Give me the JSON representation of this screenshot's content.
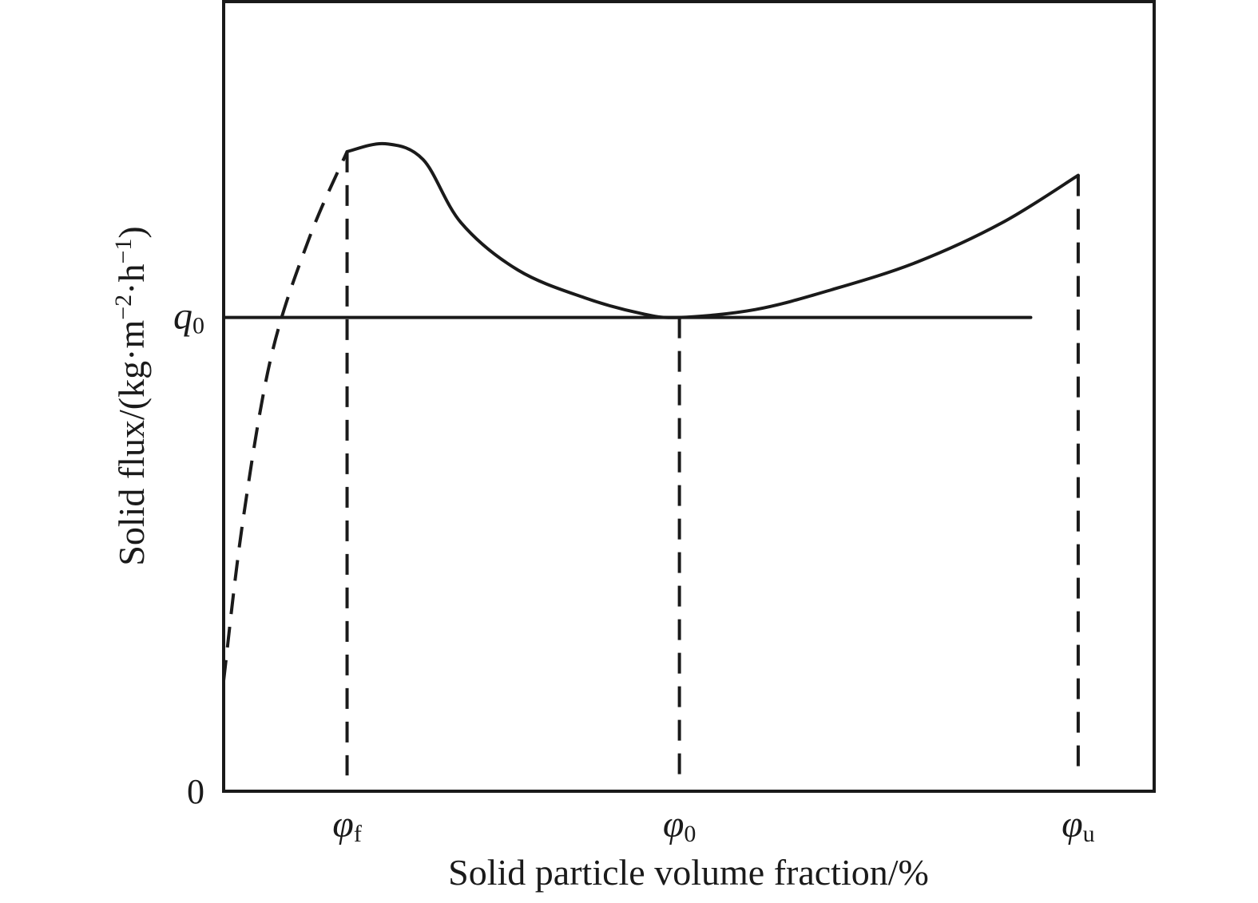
{
  "chart_data": {
    "type": "line",
    "title": "",
    "xlabel": "Solid particle volume fraction/%",
    "ylabel_main": "Solid flux/(kg·m",
    "ylabel_exp1": "−2",
    "ylabel_mid": "·h",
    "ylabel_exp2": "−1",
    "ylabel_end": ")",
    "x_ticks": [
      {
        "symbol": "φ",
        "sub": "f",
        "x": 0.15
      },
      {
        "symbol": "φ",
        "sub": "0",
        "x": 0.5
      },
      {
        "symbol": "φ",
        "sub": "u",
        "x": 0.92
      }
    ],
    "y_ticks": {
      "zero": "0",
      "q0_symbol": "q",
      "q0_sub": "0",
      "q0_value": 0.6
    },
    "xlim": [
      0.02,
      1.0
    ],
    "ylim": [
      0,
      1.0
    ],
    "grid": false,
    "series": [
      {
        "style": "dashed",
        "points": [
          [
            0.02,
            0.14
          ],
          [
            0.04,
            0.34
          ],
          [
            0.07,
            0.55
          ],
          [
            0.11,
            0.7
          ],
          [
            0.15,
            0.81
          ]
        ]
      },
      {
        "style": "solid",
        "points": [
          [
            0.15,
            0.81
          ],
          [
            0.19,
            0.82
          ],
          [
            0.23,
            0.8
          ],
          [
            0.27,
            0.72
          ],
          [
            0.33,
            0.66
          ],
          [
            0.4,
            0.625
          ],
          [
            0.46,
            0.605
          ],
          [
            0.5,
            0.6
          ],
          [
            0.58,
            0.61
          ],
          [
            0.66,
            0.635
          ],
          [
            0.75,
            0.67
          ],
          [
            0.84,
            0.72
          ],
          [
            0.92,
            0.78
          ]
        ]
      },
      {
        "style": "solid",
        "points": [
          [
            0.02,
            0.6
          ],
          [
            0.87,
            0.6
          ]
        ]
      }
    ],
    "reference_lines": [
      {
        "x": 0.15,
        "y_from": 0.02,
        "y_to": 0.81
      },
      {
        "x": 0.5,
        "y_from": 0.02,
        "y_to": 0.6
      },
      {
        "x": 0.92,
        "y_from": 0.02,
        "y_to": 0.78
      }
    ]
  }
}
